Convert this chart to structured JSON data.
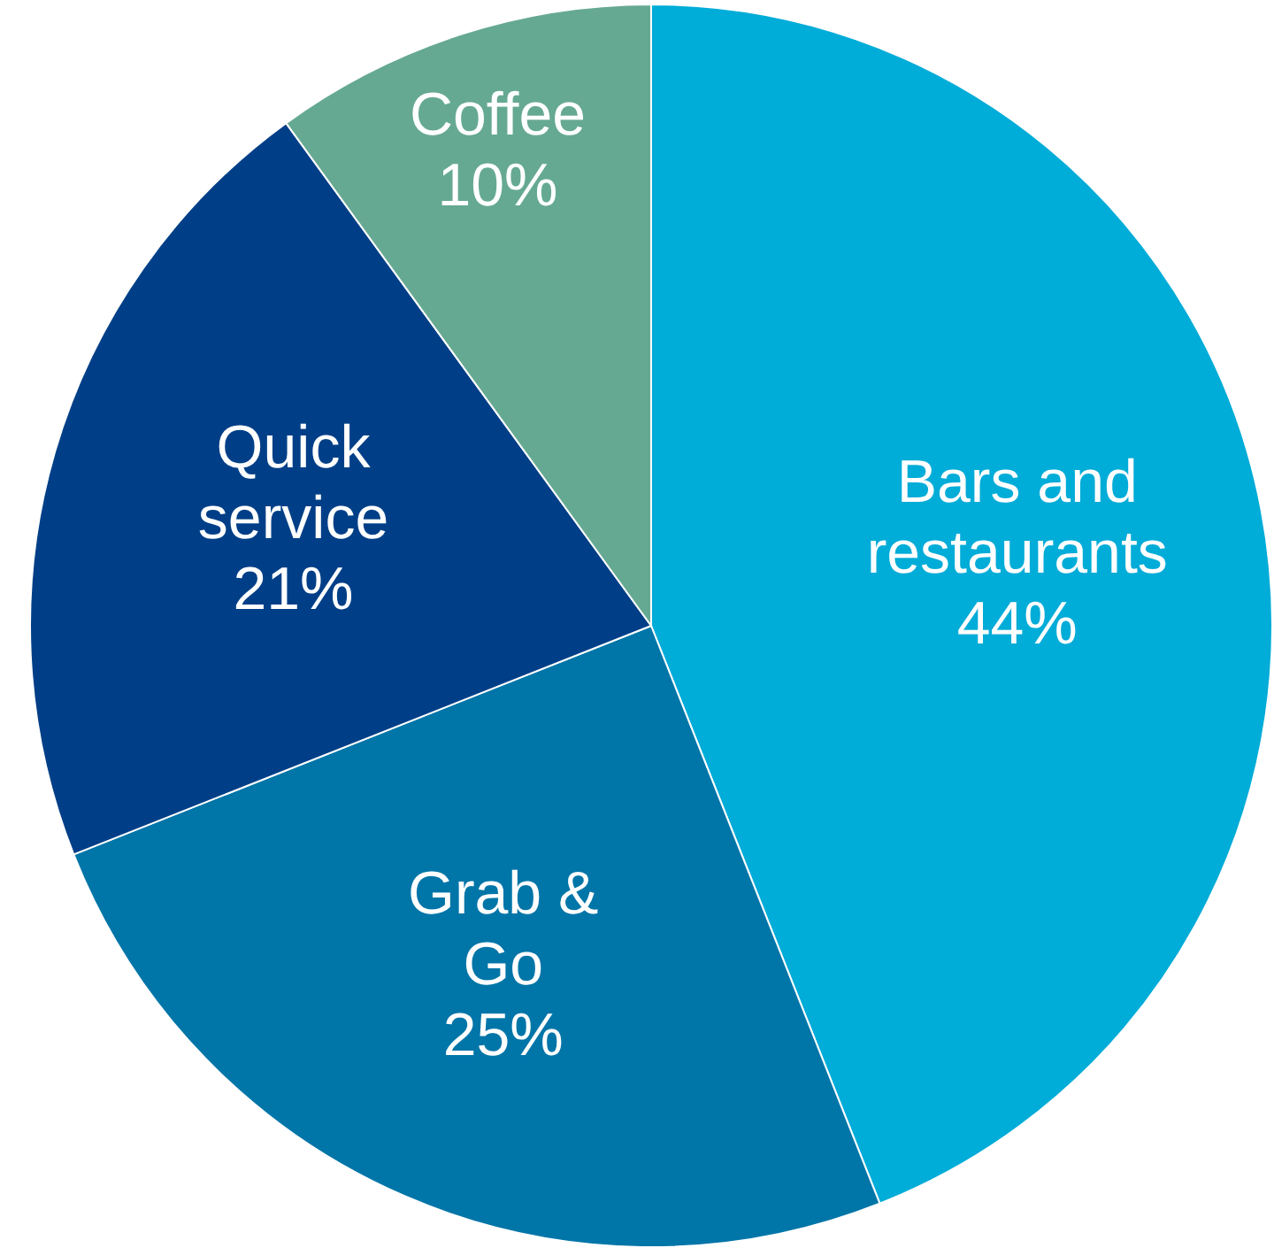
{
  "chart_data": {
    "type": "pie",
    "categories": [
      "Bars and restaurants",
      "Grab & Go",
      "Quick service",
      "Coffee"
    ],
    "values": [
      44,
      25,
      21,
      10
    ],
    "colors": [
      "#00acd8",
      "#0075a8",
      "#003f87",
      "#66a992"
    ],
    "value_labels": [
      "44%",
      "25%",
      "21%",
      "10%"
    ],
    "legend": false
  }
}
